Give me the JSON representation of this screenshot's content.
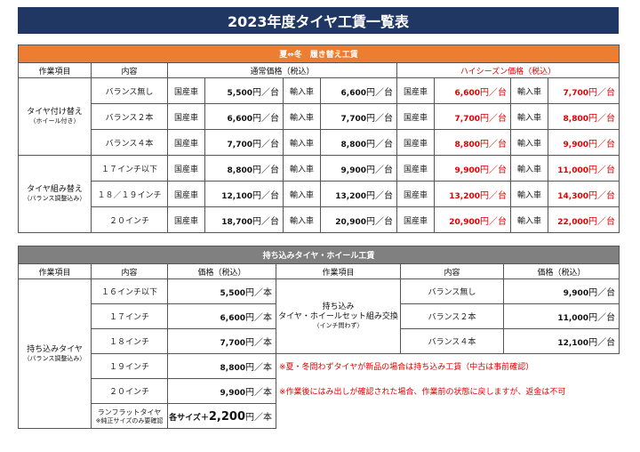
{
  "title": "2023年度タイヤ工賃一覧表",
  "section1": {
    "title": "夏⇔冬　履き替え工賃",
    "headers": {
      "item": "作業項目",
      "content": "内容",
      "normal": "通常価格（税込）",
      "high": "ハイシーズン価格（税込）"
    },
    "domestic_label": "国産車",
    "import_label": "輸入車",
    "unit": "円／台",
    "groups": [
      {
        "name_line1": "タイヤ付け替え",
        "name_line2": "（ホイール付き）",
        "rows": [
          {
            "content": "バランス無し",
            "normal_domestic": "5,500",
            "normal_import": "6,600",
            "high_domestic": "6,600",
            "high_import": "7,700"
          },
          {
            "content": "バランス２本",
            "normal_domestic": "6,600",
            "normal_import": "7,700",
            "high_domestic": "7,700",
            "high_import": "8,800"
          },
          {
            "content": "バランス４本",
            "normal_domestic": "7,700",
            "normal_import": "8,800",
            "high_domestic": "8,800",
            "high_import": "9,900"
          }
        ]
      },
      {
        "name_line1": "タイヤ組み替え",
        "name_line2": "（バランス調整込み）",
        "rows": [
          {
            "content": "１７インチ以下",
            "normal_domestic": "8,800",
            "normal_import": "9,900",
            "high_domestic": "9,900",
            "high_import": "11,000"
          },
          {
            "content": "１８／１９インチ",
            "normal_domestic": "12,100",
            "normal_import": "13,200",
            "high_domestic": "13,200",
            "high_import": "14,300"
          },
          {
            "content": "２０インチ",
            "normal_domestic": "18,700",
            "normal_import": "20,900",
            "high_domestic": "20,900",
            "high_import": "22,000"
          }
        ]
      }
    ]
  },
  "section2": {
    "title": "持ち込みタイヤ・ホイール工賃",
    "headers": {
      "item": "作業項目",
      "content": "内容",
      "price": "価格（税込）",
      "item2": "作業項目",
      "content2": "内容",
      "price2": "価格（税込）"
    },
    "left_item_line1": "持ち込みタイヤ",
    "left_item_line2": "（バランス調整込み）",
    "unit_hon": "円／本",
    "unit_dai": "円／台",
    "left_rows": [
      {
        "content": "１６インチ以下",
        "price": "5,500"
      },
      {
        "content": "１７インチ",
        "price": "6,600"
      },
      {
        "content": "１８インチ",
        "price": "7,700"
      },
      {
        "content": "１９インチ",
        "price": "8,800"
      },
      {
        "content": "２０インチ",
        "price": "9,900"
      }
    ],
    "runflat": {
      "line1": "ランフラットタイヤ",
      "line2": "※純正サイズのみ要確認",
      "prefix": "各サイズ＋",
      "price": "2,200"
    },
    "right_item_line1": "持ち込み",
    "right_item_line2": "タイヤ・ホイールセット組み交換",
    "right_item_line3": "（インチ問わず）",
    "right_rows": [
      {
        "content": "バランス無し",
        "price": "9,900"
      },
      {
        "content": "バランス２本",
        "price": "11,000"
      },
      {
        "content": "バランス４本",
        "price": "12,100"
      }
    ],
    "note1": "※夏・冬問わずタイヤが新品の場合は持ち込み工賃（中古は事前確認）",
    "note2": "※作業後にはみ出しが確認された場合、作業前の状態に戻しますが、返金は不可"
  },
  "colors": {
    "title_bg": "#203764",
    "section1_band": "#ED7D31",
    "section2_band": "#808080",
    "high_season_text": "#e00000"
  }
}
